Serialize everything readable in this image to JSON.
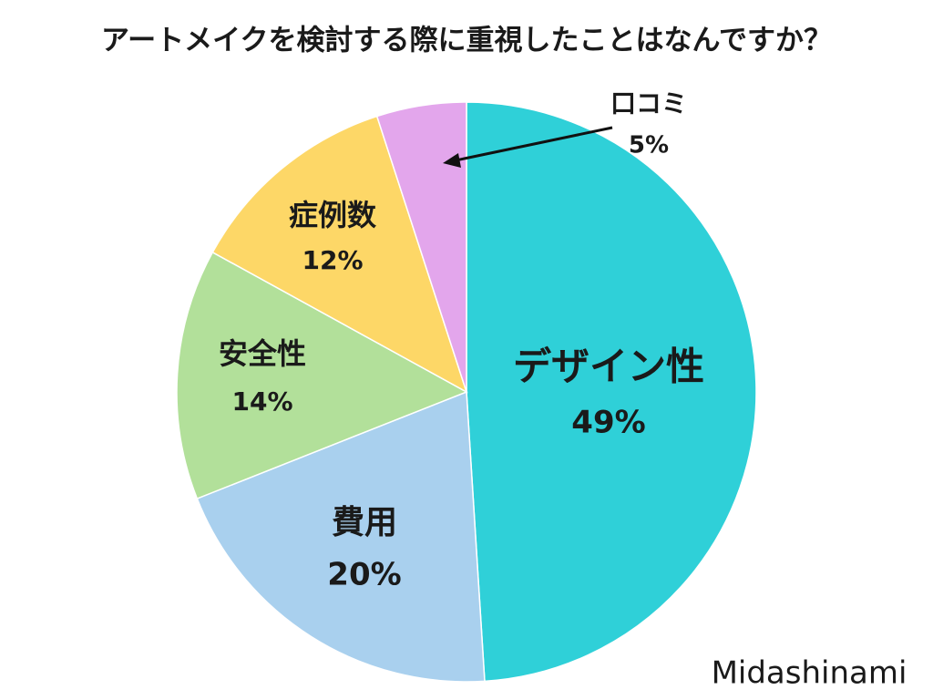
{
  "chart_data": {
    "type": "pie",
    "title": "アートメイクを検討する際に重視したことはなんですか？",
    "categories": [
      "デザイン性",
      "費用",
      "安全性",
      "症例数",
      "口コミ"
    ],
    "values": [
      49,
      20,
      14,
      12,
      5
    ],
    "value_labels": [
      "49%",
      "20%",
      "14%",
      "12%",
      "5%"
    ],
    "colors": [
      "#2fd0d8",
      "#a9d0ee",
      "#b2e09a",
      "#fdd767",
      "#e3a6ec"
    ],
    "watermark": "Midashinami"
  }
}
